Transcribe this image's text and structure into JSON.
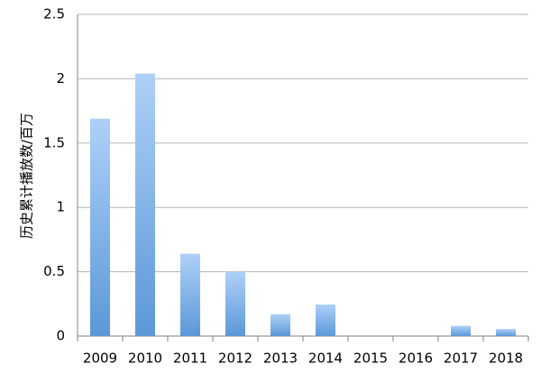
{
  "chart_data": {
    "type": "bar",
    "ylabel": "历史累计播放数/百万",
    "categories": [
      "2009",
      "2010",
      "2011",
      "2012",
      "2013",
      "2014",
      "2015",
      "2016",
      "2017",
      "2018"
    ],
    "values": [
      1.69,
      2.04,
      0.64,
      0.5,
      0.17,
      0.245,
      0,
      0,
      0.08,
      0.055
    ],
    "color": [
      "#aed0f8",
      "#5b98d8"
    ],
    "ylim": [
      0,
      2.5
    ],
    "yticks": [
      0,
      0.5,
      1,
      1.5,
      2,
      2.5
    ],
    "grid": true
  }
}
